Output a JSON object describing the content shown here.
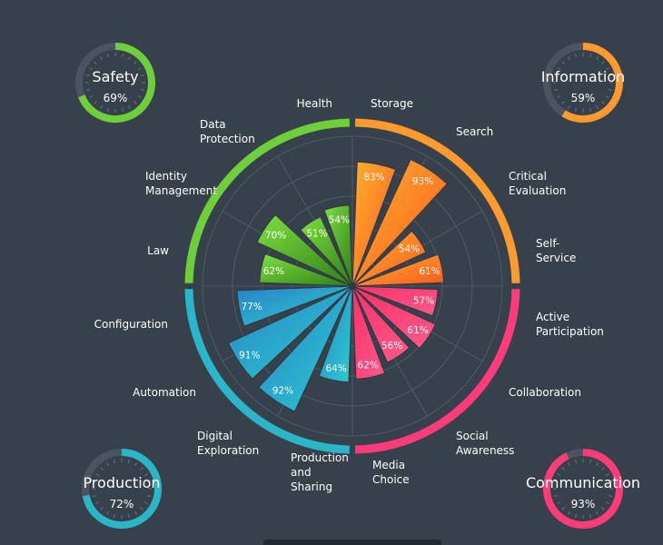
{
  "chart_data": {
    "type": "polar-bar",
    "max": 100,
    "groups": [
      {
        "name": "Information",
        "color": "#ff9a2e",
        "gauge": {
          "title": "Information",
          "value": 59,
          "value_label": "59%"
        },
        "items": [
          {
            "label": [
              "Storage"
            ],
            "value": 83
          },
          {
            "label": [
              "Search"
            ],
            "value": 93
          },
          {
            "label": [
              "Critical",
              "Evaluation"
            ],
            "value": 54
          },
          {
            "label": [
              "Self-",
              "Service"
            ],
            "value": 61
          }
        ]
      },
      {
        "name": "Communication",
        "color": "#ff3b7a",
        "gauge": {
          "title": "Communication",
          "value": 93,
          "value_label": "93%"
        },
        "items": [
          {
            "label": [
              "Active",
              "Participation"
            ],
            "value": 57
          },
          {
            "label": [
              "Collaboration"
            ],
            "value": 61
          },
          {
            "label": [
              "Social",
              "Awareness"
            ],
            "value": 56
          },
          {
            "label": [
              "Media",
              "Choice"
            ],
            "value": 62
          }
        ]
      },
      {
        "name": "Production",
        "color": "#2ab6c8",
        "gauge": {
          "title": "Production",
          "value": 72,
          "value_label": "72%"
        },
        "items": [
          {
            "label": [
              "Production",
              "and",
              "Sharing"
            ],
            "value": 64
          },
          {
            "label": [
              "Digital",
              "Exploration"
            ],
            "value": 92
          },
          {
            "label": [
              "Automation"
            ],
            "value": 91
          },
          {
            "label": [
              "Configuration"
            ],
            "value": 77
          }
        ]
      },
      {
        "name": "Safety",
        "color": "#6fcf3a",
        "gauge": {
          "title": "Safety",
          "value": 69,
          "value_label": "69%"
        },
        "items": [
          {
            "label": [
              "Law"
            ],
            "value": 62
          },
          {
            "label": [
              "Identity",
              "Management"
            ],
            "value": 70
          },
          {
            "label": [
              "Data",
              "Protection"
            ],
            "value": 51
          },
          {
            "label": [
              "Health"
            ],
            "value": 54
          }
        ]
      }
    ]
  }
}
